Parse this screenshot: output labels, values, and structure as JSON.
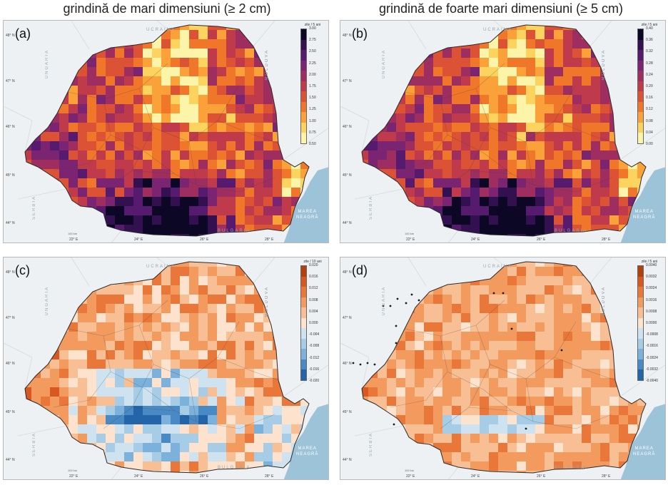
{
  "titles": {
    "left": "grindină de mari dimensiuni (≥ 2 cm)",
    "right": "grindină de foarte mari dimensiuni (≥ 5 cm)"
  },
  "labels": {
    "countries": {
      "ukraine": "UCRAINA",
      "moldova": "MOLDOVA",
      "hungary": "UNGARIA",
      "serbia": "SERBIA",
      "bulgaria": "BULGARIA"
    },
    "sea": "MAREA NEAGRĂ",
    "latitudes": [
      "48° N",
      "47° N",
      "46° N",
      "45° N",
      "44° N"
    ],
    "longitudes": [
      "22° E",
      "24° E",
      "26° E",
      "28° E"
    ],
    "scale": "100 km"
  },
  "panels": [
    {
      "id": "a",
      "letter": "(a)",
      "unit": "zile / 5 ani",
      "palette": "magma",
      "ticks": [
        "3.00",
        "2.75",
        "2.50",
        "2.25",
        "2.00",
        "1.75",
        "1.50",
        "1.25",
        "1.00",
        "0.75",
        "0.50"
      ]
    },
    {
      "id": "b",
      "letter": "(b)",
      "unit": "zile / 5 ani",
      "palette": "magma",
      "ticks": [
        "0.40",
        "0.36",
        "0.32",
        "0.28",
        "0.24",
        "0.20",
        "0.16",
        "0.12",
        "0.08",
        "0.04",
        "0.00"
      ]
    },
    {
      "id": "c",
      "letter": "(c)",
      "unit": "zile / 10 ani",
      "palette": "diverging",
      "ticks": [
        "0.020",
        "0.016",
        "0.012",
        "0.008",
        "0.004",
        "0.000",
        "-0.004",
        "-0.008",
        "-0.012",
        "-0.016",
        "-0.020"
      ]
    },
    {
      "id": "d",
      "letter": "(d)",
      "unit": "zile / 5 ani",
      "palette": "diverging",
      "ticks": [
        "0.0040",
        "0.0032",
        "0.0024",
        "0.0016",
        "0.0008",
        "0.0000",
        "-0.0008",
        "-0.0016",
        "-0.0024",
        "-0.0032",
        "-0.0040"
      ]
    }
  ],
  "colors": {
    "magma": [
      "#fcf4a8",
      "#fcd35e",
      "#fba13a",
      "#f0772a",
      "#dc5234",
      "#bf3a4b",
      "#9d2e5f",
      "#7b2472",
      "#561a6e",
      "#33104f",
      "#0c0725"
    ],
    "diverging": [
      "#2464a8",
      "#4a8ac4",
      "#7bb1da",
      "#a7cde6",
      "#cfe2ef",
      "#fde3cd",
      "#f9bf94",
      "#f39a5f",
      "#e9773a",
      "#d75821",
      "#b2420d"
    ],
    "sea": "#9dc3d8",
    "outside": "#eef1f3"
  }
}
